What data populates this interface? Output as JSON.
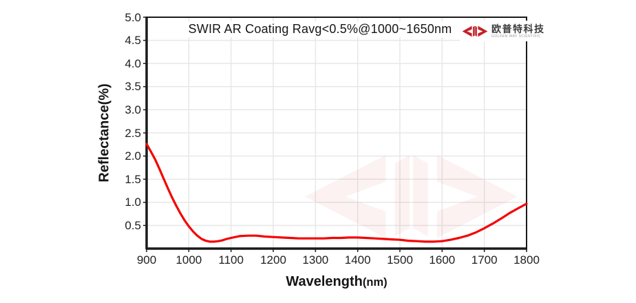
{
  "chart_data": {
    "type": "line",
    "title": "SWIR AR Coating Ravg<0.5%@1000~1650nm",
    "xlabel": "Wavelength(nm)",
    "xlabel_main": "Wavelength",
    "xlabel_unit": "(nm)",
    "ylabel": "Reflectance(%)",
    "xlim": [
      900,
      1800
    ],
    "ylim": [
      0,
      5
    ],
    "xticks": [
      900,
      1000,
      1100,
      1200,
      1300,
      1400,
      1500,
      1600,
      1700,
      1800
    ],
    "yticks": [
      0.5,
      1.0,
      1.5,
      2.0,
      2.5,
      3.0,
      3.5,
      4.0,
      4.5,
      5.0
    ],
    "ytick_decimals": 1,
    "grid": true,
    "legend": false,
    "line_color": "#f40000",
    "series": [
      {
        "name": "Reflectance",
        "points": [
          [
            900,
            2.26
          ],
          [
            910,
            2.1
          ],
          [
            920,
            1.93
          ],
          [
            930,
            1.73
          ],
          [
            940,
            1.52
          ],
          [
            950,
            1.31
          ],
          [
            960,
            1.11
          ],
          [
            970,
            0.93
          ],
          [
            980,
            0.76
          ],
          [
            990,
            0.61
          ],
          [
            1000,
            0.48
          ],
          [
            1010,
            0.37
          ],
          [
            1020,
            0.28
          ],
          [
            1030,
            0.21
          ],
          [
            1040,
            0.17
          ],
          [
            1050,
            0.15
          ],
          [
            1060,
            0.15
          ],
          [
            1070,
            0.16
          ],
          [
            1080,
            0.18
          ],
          [
            1090,
            0.21
          ],
          [
            1100,
            0.23
          ],
          [
            1120,
            0.27
          ],
          [
            1140,
            0.28
          ],
          [
            1160,
            0.28
          ],
          [
            1180,
            0.26
          ],
          [
            1200,
            0.25
          ],
          [
            1220,
            0.24
          ],
          [
            1240,
            0.23
          ],
          [
            1260,
            0.22
          ],
          [
            1280,
            0.22
          ],
          [
            1300,
            0.22
          ],
          [
            1320,
            0.22
          ],
          [
            1340,
            0.23
          ],
          [
            1360,
            0.23
          ],
          [
            1380,
            0.24
          ],
          [
            1400,
            0.24
          ],
          [
            1420,
            0.23
          ],
          [
            1440,
            0.22
          ],
          [
            1460,
            0.21
          ],
          [
            1480,
            0.2
          ],
          [
            1500,
            0.19
          ],
          [
            1520,
            0.17
          ],
          [
            1540,
            0.16
          ],
          [
            1560,
            0.15
          ],
          [
            1580,
            0.15
          ],
          [
            1600,
            0.16
          ],
          [
            1620,
            0.19
          ],
          [
            1640,
            0.23
          ],
          [
            1660,
            0.28
          ],
          [
            1680,
            0.35
          ],
          [
            1700,
            0.44
          ],
          [
            1720,
            0.54
          ],
          [
            1740,
            0.65
          ],
          [
            1760,
            0.77
          ],
          [
            1780,
            0.87
          ],
          [
            1800,
            0.97
          ]
        ]
      }
    ]
  },
  "logo": {
    "cn_text": "欧普特科技",
    "en_text": "GOLDEN WAY SCIENTIFIC",
    "emblem_color": "#c42127"
  },
  "watermark": {
    "color": "#c42127",
    "opacity": 0.06
  },
  "colors": {
    "curve": "#f40000",
    "grid": "#e7e7e7",
    "frame": "#1a1a1a",
    "text": "#212121"
  }
}
